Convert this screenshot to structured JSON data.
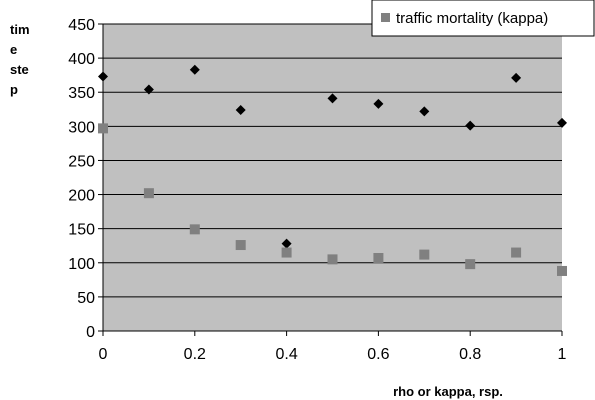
{
  "chart_data": {
    "type": "scatter",
    "title": "",
    "xlabel": "rho or kappa, rsp.",
    "ylabel_lines": [
      "tim",
      "e",
      "ste",
      "p"
    ],
    "xlim": [
      0,
      1
    ],
    "ylim": [
      0,
      450
    ],
    "x_ticks": [
      "0",
      "0.2",
      "0.4",
      "0.6",
      "0.8",
      "1"
    ],
    "y_ticks": [
      "0",
      "50",
      "100",
      "150",
      "200",
      "250",
      "300",
      "350",
      "400",
      "450"
    ],
    "grid": "horizontal",
    "legend_position": "top-right",
    "plot_background": "#c0c0c0",
    "series": [
      {
        "name": "",
        "marker": "diamond",
        "color": "#000000",
        "x": [
          0,
          0.1,
          0.2,
          0.3,
          0.4,
          0.5,
          0.6,
          0.7,
          0.8,
          0.9,
          1
        ],
        "y": [
          373,
          354,
          383,
          324,
          128,
          341,
          333,
          322,
          301,
          371,
          305
        ]
      },
      {
        "name": "traffic mortality (kappa)",
        "marker": "square",
        "color": "#808080",
        "x": [
          0,
          0.1,
          0.2,
          0.3,
          0.4,
          0.5,
          0.6,
          0.7,
          0.8,
          0.9,
          1
        ],
        "y": [
          297,
          202,
          149,
          126,
          115,
          105,
          107,
          112,
          98,
          115,
          88
        ]
      }
    ]
  }
}
